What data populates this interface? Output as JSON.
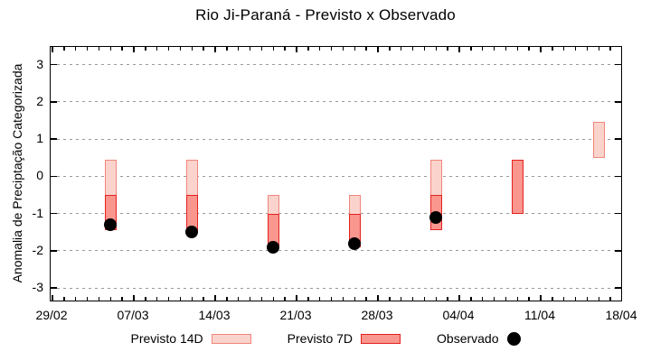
{
  "chart_data": {
    "type": "bar",
    "subtype": "forecast-range-bars-with-observed-points",
    "title": "Rio Ji-Paraná - Previsto x Observado",
    "ylabel": "Anomalia de Preciptação Categorizada",
    "xlabel": "",
    "ylim": [
      -3.4,
      3.5
    ],
    "yticks": [
      -3,
      -2,
      -1,
      0,
      1,
      2,
      3
    ],
    "grid": "horizontal-dashed",
    "legend_position": "bottom-center",
    "xticks": [
      {
        "day": 0,
        "label": "29/02"
      },
      {
        "day": 7,
        "label": "07/03"
      },
      {
        "day": 14,
        "label": "14/03"
      },
      {
        "day": 21,
        "label": "21/03"
      },
      {
        "day": 28,
        "label": "28/03"
      },
      {
        "day": 35,
        "label": "04/04"
      },
      {
        "day": 42,
        "label": "11/04"
      },
      {
        "day": 49,
        "label": "18/04"
      }
    ],
    "minor_tick_every_days": 1,
    "x_span_days": 49,
    "points": [
      {
        "date": "05/03",
        "day": 5,
        "previsto14": [
          -1.45,
          0.45
        ],
        "previsto7": [
          -1.45,
          -0.5
        ],
        "observado": -1.3
      },
      {
        "date": "12/03",
        "day": 12,
        "previsto14": [
          -1.5,
          0.45
        ],
        "previsto7": [
          -1.5,
          -0.5
        ],
        "observado": -1.5
      },
      {
        "date": "19/03",
        "day": 19,
        "previsto14": [
          -1.9,
          -0.5
        ],
        "previsto7": [
          -1.9,
          -1.0
        ],
        "observado": -1.9
      },
      {
        "date": "26/03",
        "day": 26,
        "previsto14": [
          -1.9,
          -0.5
        ],
        "previsto7": [
          -1.9,
          -1.0
        ],
        "observado": -1.8
      },
      {
        "date": "02/04",
        "day": 33,
        "previsto14": [
          -1.45,
          0.45
        ],
        "previsto7": [
          -1.45,
          -0.5
        ],
        "observado": -1.1
      },
      {
        "date": "09/04",
        "day": 40,
        "previsto14": null,
        "previsto7": [
          -1.0,
          0.45
        ],
        "observado": null
      },
      {
        "date": "16/04",
        "day": 47,
        "previsto14": [
          0.5,
          1.45
        ],
        "previsto7": null,
        "observado": null
      }
    ],
    "colors": {
      "previsto14_fill": "#fbd3cd",
      "previsto14_border": "#f0867b",
      "previsto7_fill": "#f9968e",
      "previsto7_border": "#e32220",
      "observado": "#000000",
      "grid": "#999999",
      "frame": "#000000",
      "background": "#ffffff"
    }
  },
  "legend": {
    "items": [
      {
        "label": "Previsto 14D",
        "swatch": "previsto14"
      },
      {
        "label": "Previsto 7D",
        "swatch": "previsto7"
      },
      {
        "label": "Observado",
        "swatch": "observado"
      }
    ]
  }
}
